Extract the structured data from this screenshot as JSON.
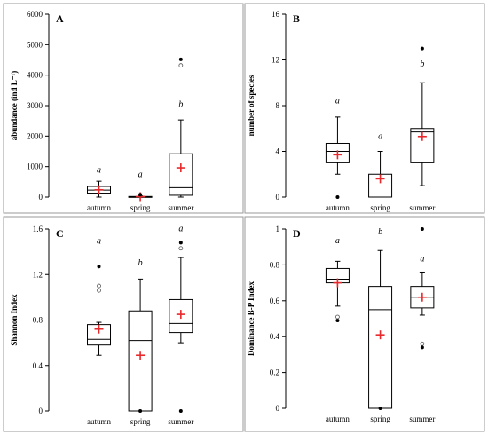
{
  "chart_data": [
    {
      "type": "box",
      "panel": "A",
      "ylabel": "abundance  (ind L⁻¹)",
      "ylim": [
        0,
        6000
      ],
      "yticks": [
        0,
        1000,
        2000,
        3000,
        4000,
        5000,
        6000
      ],
      "categories": [
        "autumn",
        "spring",
        "summer"
      ],
      "boxes": [
        {
          "whisker_low": 0,
          "q1": 130,
          "median": 230,
          "q3": 350,
          "whisker_high": 520,
          "mean": 240,
          "outliers_filled": [],
          "outliers_open": [],
          "letter": "a",
          "letter_y": 800
        },
        {
          "whisker_low": 0,
          "q1": 0,
          "median": 10,
          "q3": 20,
          "whisker_high": 40,
          "mean": 15,
          "outliers_filled": [
            80
          ],
          "outliers_open": [],
          "letter": "a",
          "letter_y": 650
        },
        {
          "whisker_low": 0,
          "q1": 60,
          "median": 310,
          "q3": 1420,
          "whisker_high": 2530,
          "mean": 960,
          "outliers_filled": [
            4520
          ],
          "outliers_open": [
            4320
          ],
          "letter": "b",
          "letter_y": 2950
        }
      ]
    },
    {
      "type": "box",
      "panel": "B",
      "ylabel": "number of species",
      "ylim": [
        0,
        16
      ],
      "yticks": [
        0,
        4,
        8,
        12,
        16
      ],
      "categories": [
        "autumn",
        "spring",
        "summer"
      ],
      "boxes": [
        {
          "whisker_low": 2,
          "q1": 3,
          "median": 4,
          "q3": 4.7,
          "whisker_high": 7,
          "mean": 3.7,
          "outliers_filled": [
            0
          ],
          "outliers_open": [],
          "letter": "a",
          "letter_y": 8.2
        },
        {
          "whisker_low": 0,
          "q1": 0,
          "median": 0,
          "q3": 2,
          "whisker_high": 4,
          "mean": 1.6,
          "outliers_filled": [],
          "outliers_open": [],
          "letter": "a",
          "letter_y": 5.1
        },
        {
          "whisker_low": 1,
          "q1": 3,
          "median": 5.7,
          "q3": 6,
          "whisker_high": 10,
          "mean": 5.3,
          "outliers_filled": [
            13
          ],
          "outliers_open": [],
          "letter": "b",
          "letter_y": 11.4
        }
      ]
    },
    {
      "type": "box",
      "panel": "C",
      "ylabel": "Shannon Index",
      "ylim": [
        0,
        1.6
      ],
      "yticks": [
        0,
        0.4,
        0.8,
        1.2,
        1.6
      ],
      "categories": [
        "autumn",
        "spring",
        "summer"
      ],
      "boxes": [
        {
          "whisker_low": 0.49,
          "q1": 0.58,
          "median": 0.63,
          "q3": 0.76,
          "whisker_high": 0.78,
          "mean": 0.72,
          "outliers_filled": [
            1.27
          ],
          "outliers_open": [
            1.06,
            1.1
          ],
          "letter": "a",
          "letter_y": 1.47
        },
        {
          "whisker_low": 0,
          "q1": 0,
          "median": 0.62,
          "q3": 0.88,
          "whisker_high": 1.16,
          "mean": 0.49,
          "outliers_filled": [
            0
          ],
          "outliers_open": [],
          "letter": "b",
          "letter_y": 1.28
        },
        {
          "whisker_low": 0.6,
          "q1": 0.69,
          "median": 0.77,
          "q3": 0.98,
          "whisker_high": 1.35,
          "mean": 0.85,
          "outliers_filled": [
            1.48,
            0
          ],
          "outliers_open": [
            1.43
          ],
          "letter": "a",
          "letter_y": 1.58
        }
      ]
    },
    {
      "type": "box",
      "panel": "D",
      "ylabel": "Dominance B-P Index",
      "ylim": [
        0,
        1
      ],
      "yticks": [
        0,
        0.2,
        0.4,
        0.6,
        0.8,
        1
      ],
      "categories": [
        "autumn",
        "spring",
        "summer"
      ],
      "boxes": [
        {
          "whisker_low": 0.57,
          "q1": 0.7,
          "median": 0.72,
          "q3": 0.78,
          "whisker_high": 0.82,
          "mean": 0.7,
          "outliers_filled": [
            0.49
          ],
          "outliers_open": [
            0.51
          ],
          "letter": "a",
          "letter_y": 0.92
        },
        {
          "whisker_low": 0,
          "q1": 0,
          "median": 0.55,
          "q3": 0.68,
          "whisker_high": 0.88,
          "mean": 0.41,
          "outliers_filled": [
            0
          ],
          "outliers_open": [],
          "letter": "b",
          "letter_y": 0.97
        },
        {
          "whisker_low": 0.52,
          "q1": 0.56,
          "median": 0.62,
          "q3": 0.68,
          "whisker_high": 0.76,
          "mean": 0.62,
          "outliers_filled": [
            1,
            0.34
          ],
          "outliers_open": [
            0.36
          ],
          "letter": "a",
          "letter_y": 0.82
        }
      ]
    }
  ]
}
